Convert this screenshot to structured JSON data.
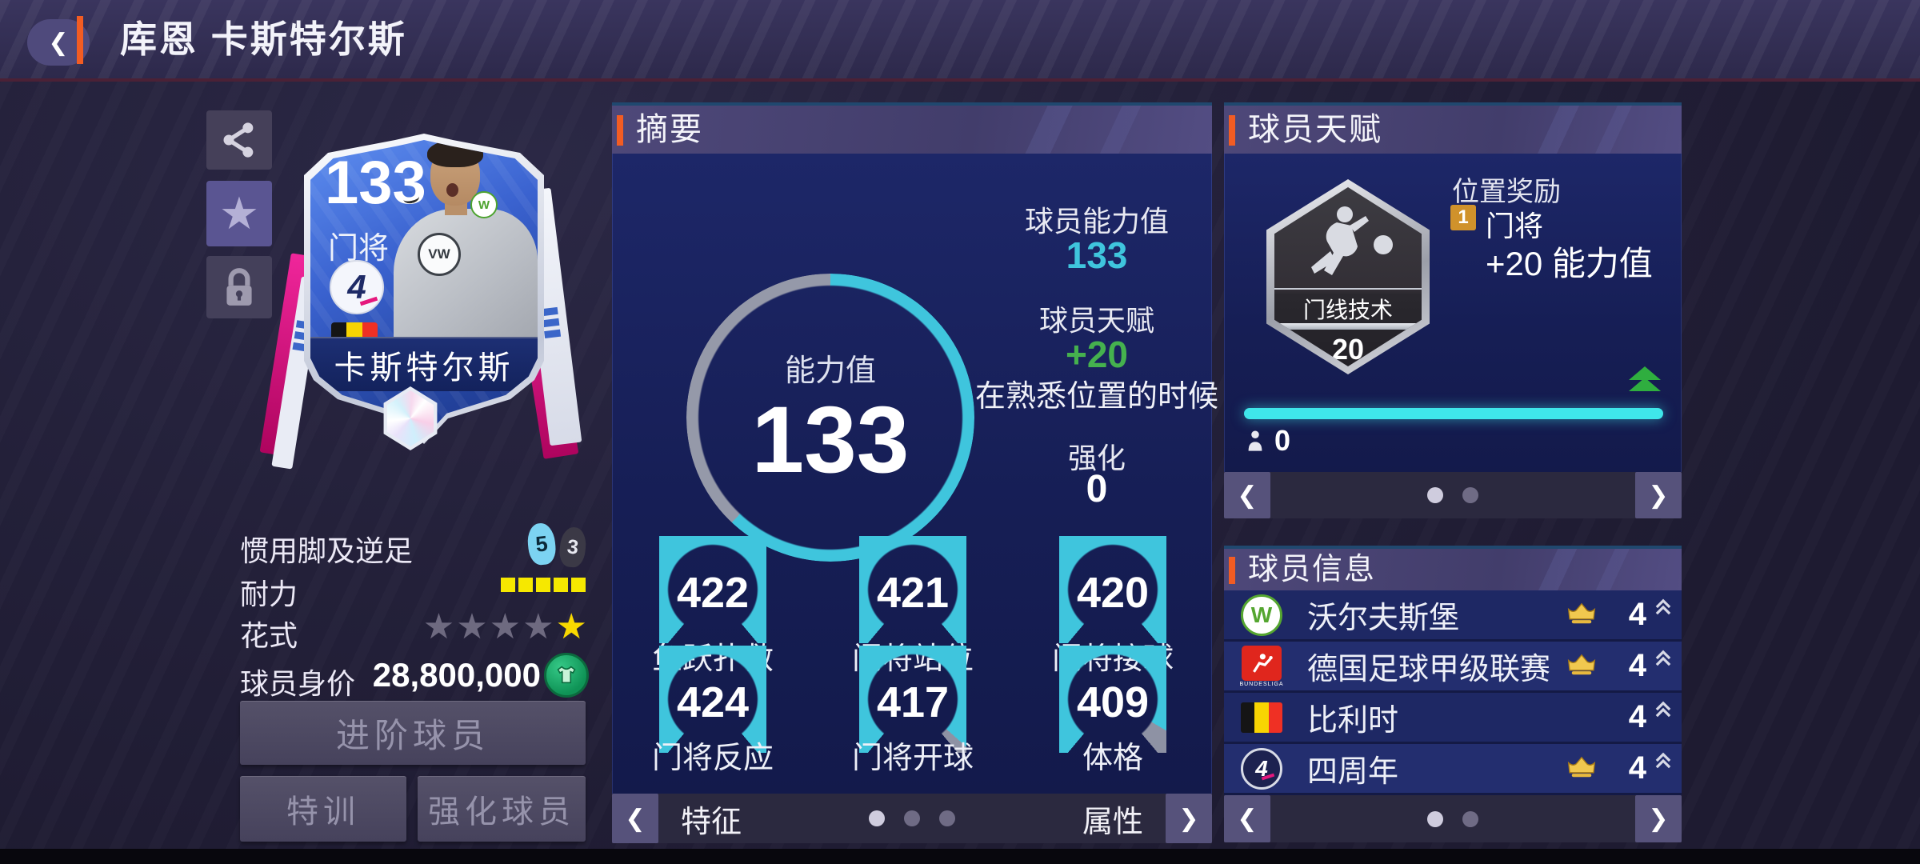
{
  "topbar": {
    "back_glyph": "❮",
    "title": "库恩 卡斯特尔斯"
  },
  "side_tools": {
    "icons": [
      "share",
      "favorite",
      "lock"
    ]
  },
  "card": {
    "rating": "133",
    "position": "门将",
    "name": "卡斯特尔斯",
    "league_badge_letter": "4",
    "shirt_emblem": "VW",
    "crest_letter": "W"
  },
  "attributes": {
    "foot_label": "惯用脚及逆足",
    "foot_strong": "5",
    "foot_weak": "3",
    "stamina_label": "耐力",
    "stamina": {
      "filled": 5,
      "total": 5
    },
    "skill_label": "花式",
    "skill_stars": [
      "dim",
      "dim",
      "dim",
      "dim",
      "gold"
    ],
    "value_label": "球员身价",
    "market_value": "28,800,000"
  },
  "actions": {
    "advance": "进阶球员",
    "train": "特训",
    "enhance": "强化球员"
  },
  "summary": {
    "header": "摘要",
    "ring": {
      "label": "能力值",
      "value": "133",
      "percent": 62
    },
    "ability_label": "球员能力值",
    "ability_value": "133",
    "talent_label": "球员天赋",
    "talent_value": "+20",
    "talent_note": "在熟悉位置的时候",
    "boost_label": "强化",
    "boost_value": "0",
    "gauges": [
      {
        "value": "422",
        "label": "鱼跃扑救",
        "fill": 1
      },
      {
        "value": "421",
        "label": "门将站位",
        "fill": 1
      },
      {
        "value": "420",
        "label": "门将接球",
        "fill": 1
      },
      {
        "value": "424",
        "label": "门将反应",
        "fill": 1
      },
      {
        "value": "417",
        "label": "门将开球",
        "fill": 0.97
      },
      {
        "value": "409",
        "label": "体格",
        "fill": 0.93
      }
    ],
    "footer": {
      "left": "特征",
      "right": "属性",
      "dots": {
        "count": 3,
        "active": 0
      },
      "prev_glyph": "❮",
      "next_glyph": "❯"
    }
  },
  "talent": {
    "header": "球员天赋",
    "badge": {
      "skill": "门线技术",
      "level": "20"
    },
    "bonus": {
      "title": "位置奖励",
      "rank": "1",
      "position": "门将",
      "effect": "+20 能力值"
    },
    "progress_percent": 100,
    "boost_count": "0",
    "footer": {
      "dots": {
        "count": 2,
        "active": 0
      },
      "prev_glyph": "❮",
      "next_glyph": "❯"
    }
  },
  "info": {
    "header": "球员信息",
    "rows": [
      {
        "label": "沃尔夫斯堡",
        "logo_letter": "W",
        "crown": true,
        "value": "4"
      },
      {
        "label": "德国足球甲级联赛",
        "logo_text": "BUNDESLIGA",
        "crown": true,
        "value": "4"
      },
      {
        "label": "比利时",
        "crown": false,
        "value": "4"
      },
      {
        "label": "四周年",
        "logo_letter": "4",
        "crown": true,
        "value": "4"
      }
    ],
    "footer": {
      "dots": {
        "count": 2,
        "active": 0
      },
      "prev_glyph": "❮",
      "next_glyph": "❯"
    }
  },
  "colors": {
    "accent_orange": "#f25c23",
    "cyan": "#3fc5dd",
    "green": "#45b14e",
    "progress_cyan": "#3fe6ea",
    "gauge_gray": "#8e92a4",
    "ring_gray": "#9599a9"
  }
}
